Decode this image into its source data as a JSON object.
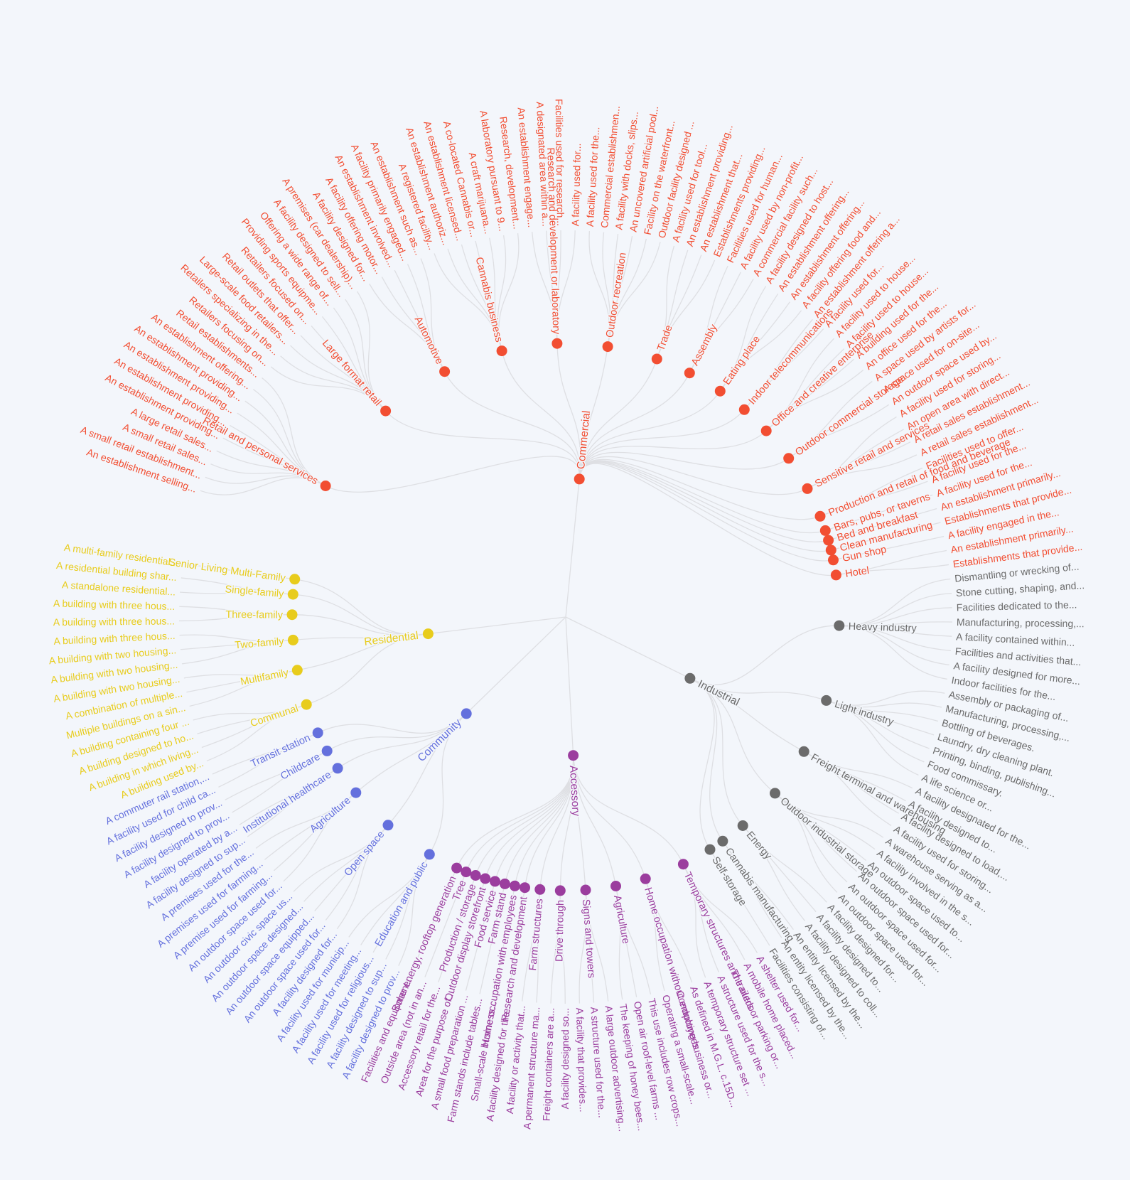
{
  "colors": {
    "Commercial": "#f24e32",
    "Industrial": "#6b6b6b",
    "Accessory": "#9b3d9e",
    "Community": "#6470dd",
    "Residential": "#e8cc1c",
    "link": "#dedfe3"
  },
  "root": "",
  "groups": [
    {
      "name": "Commercial",
      "uses": [
        {
          "name": "Retail and personal services",
          "items": [
            "An establishment selling...",
            "A small retail establishment...",
            "A small retail sales...",
            "A large retail sales...",
            "An establishment providing...",
            "An establishment providing...",
            "An establishment providing...",
            "An establishment providing...",
            "An establishment offering...",
            "Retail establishments..."
          ]
        },
        {
          "name": "Large format retail",
          "items": [
            "Retailers focusing on...",
            "Retailers specializing in the...",
            "Large-scale food retailers...",
            "Retail outlets that offer...",
            "Retailers focused on...",
            "Providing sports equipme...",
            "Offering a wide range of...",
            "A facility designed to sell...",
            "A premises (car dealership)..."
          ]
        },
        {
          "name": "Automotive",
          "items": [
            "A facility designed for...",
            "A facility offering motor...",
            "An establishment involved...",
            "A facility primarily engaged...",
            "An establishment such as..."
          ]
        },
        {
          "name": "Cannabis business",
          "items": [
            "A registered facility...",
            "An establishment authoriz...",
            "An establishment licensed...",
            "A co-located Cannabis or...",
            "A craft marijuana...",
            "A laboratory pursuant to 9...",
            "Research, development..."
          ]
        },
        {
          "name": "Research and development or laboratory",
          "items": [
            "An establishment engage...",
            "A designated area within a...",
            "Facilities used for research...",
            "A facility used for..."
          ]
        },
        {
          "name": "Outdoor recreation",
          "items": [
            "A facility used for the...",
            "Commercial establishmen...",
            "A facility with docks, slips...",
            "An uncovered artificial pool...",
            "Facility on the waterfront...",
            "Outdoor facility designed ..."
          ]
        },
        {
          "name": "Trade",
          "items": [
            "A facility used for tool...",
            "An establishment providing...",
            "An establishment that...",
            "Establishments providing..."
          ]
        },
        {
          "name": "Assembly",
          "items": [
            "Facilities used for human...",
            "A facility used by non-profit...",
            "A commercial facility such..."
          ]
        },
        {
          "name": "Eating place",
          "items": [
            "A facility designed to host...",
            "An establishment offering...",
            "An establishment offering...",
            "A facility offering food and..."
          ]
        },
        {
          "name": "Indoor telecommunications",
          "items": [
            "An establishment offering a...",
            "A facility used for..."
          ]
        },
        {
          "name": "Office and creative enterprise",
          "items": [
            "A facility used to house...",
            "A facility used to house...",
            "A building used for the...",
            "An office used for the..."
          ]
        },
        {
          "name": "Outdoor commercial storage",
          "items": [
            "A space used by artists for...",
            "A space used for on-site...",
            "An outdoor space used by..."
          ]
        },
        {
          "name": "Sensitive retail and services",
          "items": [
            "A facility used for storing...",
            "An open area with direct...",
            "A retail sales establishment...",
            "A retail sales establishment..."
          ]
        },
        {
          "name": "Production and retail of food and beverage",
          "items": [
            "Facilities used to offer...",
            "A facility used for the..."
          ]
        },
        {
          "name": "Bars, pubs, or taverns",
          "items": [
            "A facility used for the..."
          ]
        },
        {
          "name": "Bed and breakfast",
          "items": [
            "An establishment primarily..."
          ]
        },
        {
          "name": "Clean manufacturing",
          "items": [
            "Establishments that provide..."
          ]
        },
        {
          "name": "Gun shop",
          "items": [
            "A facility engaged in the..."
          ]
        },
        {
          "name": "Hotel",
          "items": [
            "An establishment primarily...",
            "Establishments that provide..."
          ]
        }
      ]
    },
    {
      "name": "Industrial",
      "uses": [
        {
          "name": "Heavy industry",
          "items": [
            "Dismantling or wrecking of...",
            "Stone cutting, shaping, and...",
            "Facilities dedicated to the...",
            "Manufacturing, processing,...",
            "A facility contained within...",
            "Facilities and activities that...",
            "A facility designed for more...",
            "Indoor facilities for the..."
          ]
        },
        {
          "name": "Light industry",
          "items": [
            "Assembly or packaging of...",
            "Manufacturing, processing,...",
            "Bottling of beverages.",
            "Laundry, dry cleaning plant.",
            "Printing, binding, publishing...",
            "Food commissary.",
            "A life science or..."
          ]
        },
        {
          "name": "Freight terminal and warehousing",
          "items": [
            "A facility designated for the...",
            "A facility designed to...",
            "A facility designed to load,...",
            "A facility used for storing..."
          ]
        },
        {
          "name": "Outdoor industrial storage",
          "items": [
            "A warehouse serving as a...",
            "A facility involved in the s...",
            "An outdoor space used to...",
            "An outdoor space used for...",
            "An outdoor space used for...",
            "An outdoor space used for..."
          ]
        },
        {
          "name": "Energy",
          "items": [
            "A facility designed for...",
            "A facility designed to...",
            "A facility designed to coll..."
          ]
        },
        {
          "name": "Cannabis manufacturing",
          "items": [
            "An entity licensed by the...",
            "An entity licensed by the..."
          ]
        },
        {
          "name": "Self-storage",
          "items": [
            "Facilities consisting of..."
          ]
        }
      ]
    },
    {
      "name": "Accessory",
      "uses": [
        {
          "name": "Temporary structures and trailers",
          "items": [
            "A shelter used for...",
            "A mobile home placed...",
            "The outdoor parking or...",
            "A structure used for the s...",
            "A temporary structure set ..."
          ]
        },
        {
          "name": "Home occupation without employees",
          "items": [
            "As defined in M.G.L. c.15D...",
            "Conducting business or...",
            "Operating a small-scale..."
          ]
        },
        {
          "name": "Agriculture",
          "items": [
            "This use includes row crops...",
            "Open air roof-level farms ...",
            "The keeping of honey bees..."
          ]
        },
        {
          "name": "Signs and towers",
          "items": [
            "A large outdoor advertising...",
            "A structure used for the...",
            "A facility that provides..."
          ]
        },
        {
          "name": "Drive through",
          "items": [
            "A facility designed so...",
            "Freight containers are a..."
          ]
        },
        {
          "name": "Farm structures",
          "items": [
            "A permanent structure ma...",
            "A facility or activity that..."
          ]
        },
        {
          "name": "Research and development",
          "items": [
            "A facility designed for the..."
          ]
        },
        {
          "name": "Home occupation with employees",
          "items": [
            "Small-scale business..."
          ]
        },
        {
          "name": "Farm stand",
          "items": [
            "Farm stands include tables..."
          ]
        },
        {
          "name": "Food service",
          "items": [
            "A small food preparation ..."
          ]
        },
        {
          "name": "Outdoor display storefront",
          "items": [
            "Area for the purpose of..."
          ]
        },
        {
          "name": "Production / storage",
          "items": [
            "Accessory retail for the..."
          ]
        },
        {
          "name": "Tree",
          "items": [
            "Outside area (not in an..."
          ]
        },
        {
          "name": "Solar energy, rooftop generation",
          "items": [
            "Facilities and equipment..."
          ]
        }
      ]
    },
    {
      "name": "Community",
      "uses": [
        {
          "name": "Education and public",
          "items": [
            "A facility designed to prov...",
            "A facility designed to sup...",
            "A facility used for religious...",
            "A facility used for meeting...",
            "A facility used for municip..."
          ]
        },
        {
          "name": "Open space",
          "items": [
            "A facility designed for...",
            "An outdoor space used for...",
            "An outdoor space equipped...",
            "An outdoor space designed...",
            "An outdoor civic space us..."
          ]
        },
        {
          "name": "Agriculture",
          "items": [
            "An outdoor space used for...",
            "A premise used for farming...",
            "A premises used for farming...",
            "A premises used for the..."
          ]
        },
        {
          "name": "Institutional healthcare",
          "items": [
            "A facility designed to sup...",
            "A facility operated by a..."
          ]
        },
        {
          "name": "Childcare",
          "items": [
            "A facility designed to prov...",
            "A facility designed to prov..."
          ]
        },
        {
          "name": "Transit station",
          "items": [
            "A facility used for child ca...",
            "A commuter rail station,..."
          ]
        }
      ]
    },
    {
      "name": "Residential",
      "uses": [
        {
          "name": "Communal",
          "items": [
            "A building used by...",
            "A building in which living...",
            "A building designed to ho...",
            "A building containing four ..."
          ]
        },
        {
          "name": "Multifamily",
          "items": [
            "Multiple buildings on a sin...",
            "A combination of multiple...",
            "A building with two housing..."
          ]
        },
        {
          "name": "Two-family",
          "items": [
            "A building with two housing...",
            "A building with two housing...",
            "A building with three hous..."
          ]
        },
        {
          "name": "Three-family",
          "items": [
            "A building with three hous...",
            "A building with three hous..."
          ]
        },
        {
          "name": "Single-family",
          "items": [
            "A standalone residential...",
            "A residential building shar..."
          ]
        },
        {
          "name": "Senior Living Multi-Family",
          "items": [
            "A multi-family residential..."
          ]
        }
      ]
    }
  ]
}
